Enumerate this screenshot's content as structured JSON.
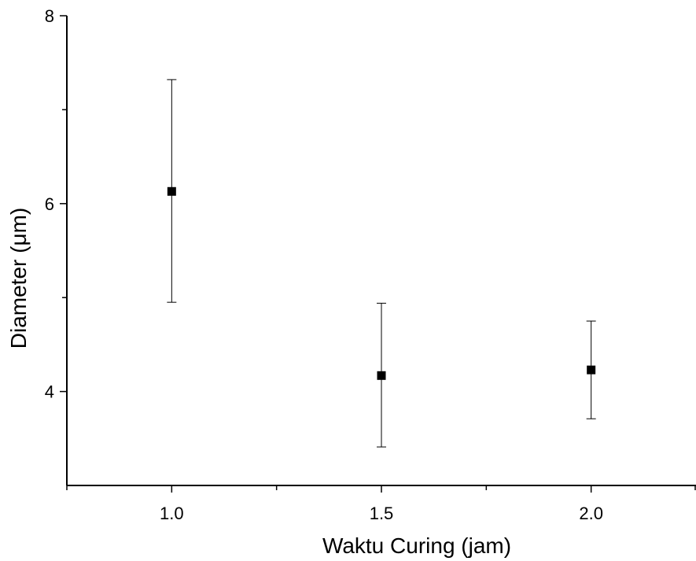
{
  "chart_data": {
    "type": "scatter",
    "title": "",
    "xlabel": "Waktu Curing (jam)",
    "ylabel": "Diameter (μm)",
    "xlim": [
      0.75,
      2.25
    ],
    "ylim": [
      3.0,
      8.0
    ],
    "x_ticks": [
      1.0,
      1.5,
      2.0
    ],
    "x_tick_labels": [
      "1.0",
      "1.5",
      "2.0"
    ],
    "x_minor_ticks": [
      0.75,
      1.25,
      1.75,
      2.25
    ],
    "y_ticks": [
      4,
      6,
      8
    ],
    "y_tick_labels": [
      "4",
      "6",
      "8"
    ],
    "y_minor_ticks": [
      5,
      7
    ],
    "grid": false,
    "legend": "none",
    "marker": "square",
    "color": "#000000",
    "points": [
      {
        "x": 1.0,
        "y": 6.13,
        "y_low": 4.95,
        "y_high": 7.32
      },
      {
        "x": 1.5,
        "y": 4.17,
        "y_low": 3.41,
        "y_high": 4.94
      },
      {
        "x": 2.0,
        "y": 4.23,
        "y_low": 3.71,
        "y_high": 4.75
      }
    ]
  }
}
